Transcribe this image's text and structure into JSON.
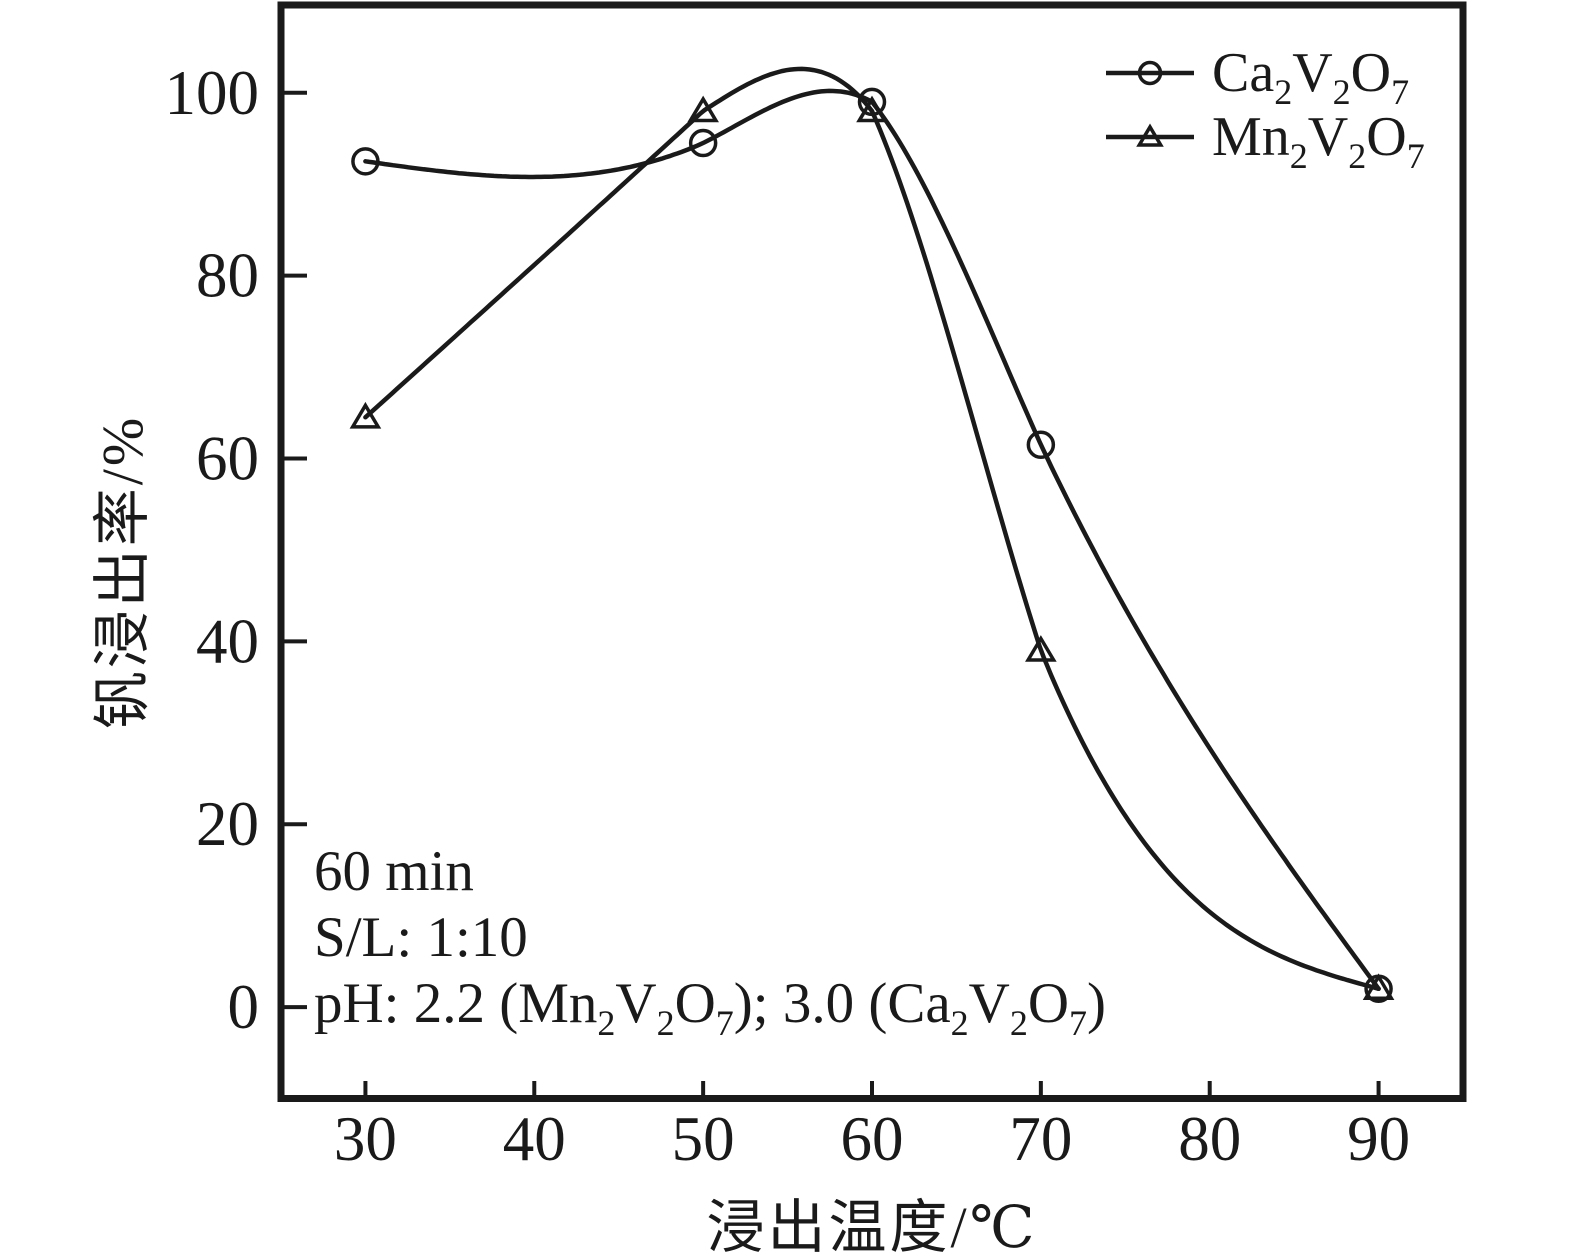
{
  "chart_data": {
    "type": "line",
    "title": "",
    "xlabel": "浸出温度/℃",
    "ylabel": "钒浸出率/%",
    "xlim": [
      25,
      95
    ],
    "ylim": [
      -10,
      109.6
    ],
    "x_ticks": [
      30,
      40,
      50,
      60,
      70,
      80,
      90
    ],
    "y_ticks": [
      0,
      20,
      40,
      60,
      80,
      100
    ],
    "grid": false,
    "smoothing": "spline",
    "legend_position": "top-right",
    "line_color": "#1a1a1a",
    "background": "#ffffff",
    "x": [
      30,
      50,
      60,
      70,
      90
    ],
    "series": [
      {
        "name": "Ca2V2O7",
        "marker": "circle-icon",
        "values": [
          92.5,
          94.5,
          99,
          61.5,
          2
        ],
        "label_segments": [
          {
            "t": "Ca"
          },
          {
            "t": "2",
            "sub": true
          },
          {
            "t": "V"
          },
          {
            "t": "2",
            "sub": true
          },
          {
            "t": "O"
          },
          {
            "t": "7",
            "sub": true
          }
        ]
      },
      {
        "name": "Mn2V2O7",
        "marker": "triangle-up-icon",
        "values": [
          64.5,
          98,
          98,
          39,
          2
        ],
        "label_segments": [
          {
            "t": "Mn"
          },
          {
            "t": "2",
            "sub": true
          },
          {
            "t": "V"
          },
          {
            "t": "2",
            "sub": true
          },
          {
            "t": "O"
          },
          {
            "t": "7",
            "sub": true
          }
        ]
      }
    ],
    "annotations": [
      {
        "name": "leach-time",
        "segments": [
          {
            "t": "60 min"
          }
        ]
      },
      {
        "name": "solid-liquid-ratio",
        "segments": [
          {
            "t": "S/L: 1:10"
          }
        ]
      },
      {
        "name": "ph-condition",
        "segments": [
          {
            "t": "pH: 2.2 (Mn"
          },
          {
            "t": "2",
            "sub": true
          },
          {
            "t": "V"
          },
          {
            "t": "2",
            "sub": true
          },
          {
            "t": "O"
          },
          {
            "t": "7",
            "sub": true
          },
          {
            "t": "); 3.0 (Ca"
          },
          {
            "t": "2",
            "sub": true
          },
          {
            "t": "V"
          },
          {
            "t": "2",
            "sub": true
          },
          {
            "t": "O"
          },
          {
            "t": "7",
            "sub": true
          },
          {
            "t": ")"
          }
        ]
      }
    ]
  }
}
